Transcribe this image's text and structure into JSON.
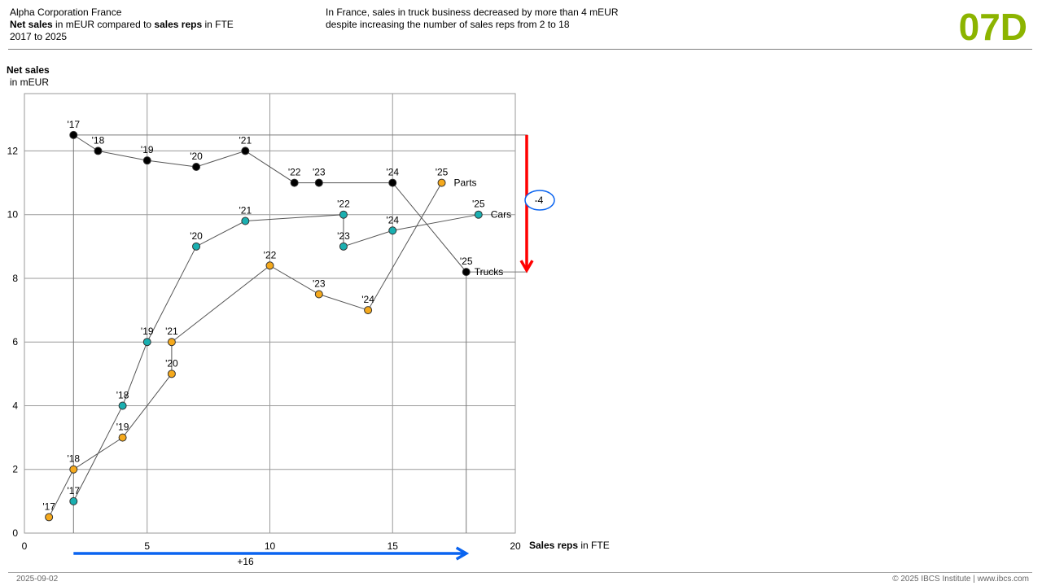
{
  "header": {
    "company": "Alpha Corporation France",
    "measure_bold": "Net sales",
    "measure_rest": " in mEUR compared to ",
    "compare_bold": "sales reps",
    "compare_rest": " in FTE",
    "period": "2017 to 2025",
    "message_line1": "In France, sales in truck business decreased by more than 4 mEUR",
    "message_line2": "despite increasing the number of sales reps from 2 to 18",
    "code": "07D"
  },
  "footer": {
    "date": "2025-09-02",
    "copyright": "© 2025 IBCS Institute | www.ibcs.com"
  },
  "colors": {
    "code": "#8cb400",
    "trucks": "#000000",
    "cars": "#1aafb0",
    "parts": "#f5a91c",
    "decrease_arrow": "#ff0000",
    "increase_arrow": "#0a64f0",
    "highlight_circle": "#0a64f0"
  },
  "chart_data": {
    "type": "scatter",
    "ylabel_bold": "Net sales",
    "ylabel_unit": "in mEUR",
    "xlabel_bold": "Sales reps",
    "xlabel_unit": " in FTE",
    "xlim": [
      0,
      20
    ],
    "ylim": [
      0,
      13.8
    ],
    "x_ticks": [
      0,
      5,
      10,
      15,
      20
    ],
    "y_ticks": [
      0,
      2,
      4,
      6,
      8,
      10,
      12
    ],
    "grid": true,
    "series": [
      {
        "name": "Trucks",
        "key": "trucks",
        "points": [
          {
            "year": "'17",
            "x": 2,
            "y": 12.5
          },
          {
            "year": "'18",
            "x": 3,
            "y": 12.0
          },
          {
            "year": "'19",
            "x": 5,
            "y": 11.7
          },
          {
            "year": "'20",
            "x": 7,
            "y": 11.5
          },
          {
            "year": "'21",
            "x": 9,
            "y": 12.0
          },
          {
            "year": "'22",
            "x": 11,
            "y": 11.0
          },
          {
            "year": "'23",
            "x": 12,
            "y": 11.0
          },
          {
            "year": "'24",
            "x": 15,
            "y": 11.0
          },
          {
            "year": "'25",
            "x": 18,
            "y": 8.2
          }
        ]
      },
      {
        "name": "Cars",
        "key": "cars",
        "points": [
          {
            "year": "'17",
            "x": 2,
            "y": 1.0
          },
          {
            "year": "'18",
            "x": 4,
            "y": 4.0
          },
          {
            "year": "'19",
            "x": 5,
            "y": 6.0
          },
          {
            "year": "'20",
            "x": 7,
            "y": 9.0
          },
          {
            "year": "'21",
            "x": 9,
            "y": 9.8
          },
          {
            "year": "'22",
            "x": 13,
            "y": 10.0
          },
          {
            "year": "'23",
            "x": 13,
            "y": 9.0
          },
          {
            "year": "'24",
            "x": 15,
            "y": 9.5
          },
          {
            "year": "'25",
            "x": 18.5,
            "y": 10.0
          }
        ]
      },
      {
        "name": "Parts",
        "key": "parts",
        "points": [
          {
            "year": "'17",
            "x": 1,
            "y": 0.5
          },
          {
            "year": "'18",
            "x": 2,
            "y": 2.0
          },
          {
            "year": "'19",
            "x": 4,
            "y": 3.0
          },
          {
            "year": "'20",
            "x": 6,
            "y": 5.0
          },
          {
            "year": "'21",
            "x": 6,
            "y": 6.0
          },
          {
            "year": "'22",
            "x": 10,
            "y": 8.4
          },
          {
            "year": "'23",
            "x": 12,
            "y": 7.5
          },
          {
            "year": "'24",
            "x": 14,
            "y": 7.0
          },
          {
            "year": "'25",
            "x": 17,
            "y": 11.0
          }
        ]
      }
    ],
    "annotations": {
      "decrease_label": "-4",
      "increase_label": "+16"
    }
  }
}
